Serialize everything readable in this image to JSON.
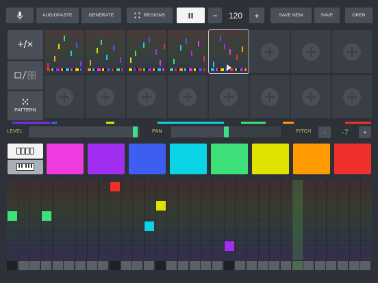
{
  "toolbar": {
    "audiopaste_label": "AUDIOPASTE",
    "generate_label": "GENERATE",
    "regions_label": "REGIONS",
    "tempo": "120",
    "tempo_minus": "−",
    "tempo_plus": "+",
    "save_new_label": "SAVE NEW",
    "save_label": "SAVE",
    "open_label": "OPEN"
  },
  "tools": {
    "add_remove": "+/×",
    "pattern_label": "PATTERN"
  },
  "controls": {
    "level_label": "LEVEL",
    "pan_label": "PAN",
    "pitch_label": "PITCH",
    "pitch_minus": "-",
    "pitch_plus": "+",
    "pitch_value": "-7",
    "level_value": 0.98,
    "pan_value": 0.5
  },
  "colors": {
    "pads": [
      "#ee3ae0",
      "#a12ef0",
      "#3d5ef0",
      "#08d4e6",
      "#3ee07a",
      "#e2e200",
      "#ff9a00",
      "#f0302a"
    ],
    "accent": "#3ee08a"
  },
  "patterns": {
    "filled_count": 5,
    "active_index": 4,
    "empty_icon": "plus-circle-icon"
  },
  "icons": {
    "mic": "microphone-icon",
    "regions": "regions-icon",
    "pause": "pause-icon",
    "pattern": "pattern-dots-icon",
    "piano": "piano-keyboard-icon",
    "drum": "drum-pads-icon"
  }
}
